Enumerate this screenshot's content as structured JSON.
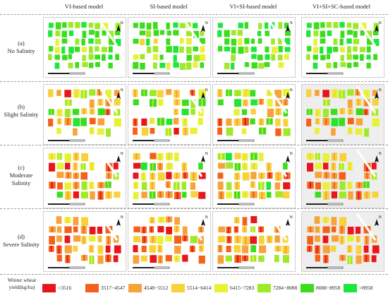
{
  "columns": [
    "VI-based model",
    "SI-based model",
    "VI+SI-based model",
    "VI+SI+SC-based model"
  ],
  "rows": [
    {
      "tag": "(a)",
      "name": "No Salinity"
    },
    {
      "tag": "(b)",
      "name": "Slight Salinity"
    },
    {
      "tag": "(c)",
      "name": "Moderate Salinity"
    },
    {
      "tag": "(d)",
      "name": "Severe Salinity"
    }
  ],
  "legend": {
    "title": "Winter wheat yield(kg/ha)",
    "classes": [
      {
        "label": "<3516",
        "color": "#e8161a"
      },
      {
        "label": "3517−4547",
        "color": "#f3621b"
      },
      {
        "label": "4548−5512",
        "color": "#f7a23a"
      },
      {
        "label": "5514−6414",
        "color": "#f8d23a"
      },
      {
        "label": "6415−7283",
        "color": "#e7f236"
      },
      {
        "label": "7284−8088",
        "color": "#9fe82a"
      },
      {
        "label": "8088−8958",
        "color": "#3ddc1d"
      },
      {
        "label": ">8958",
        "color": "#1fe63b"
      }
    ]
  },
  "north_arrow_letter": "N"
}
